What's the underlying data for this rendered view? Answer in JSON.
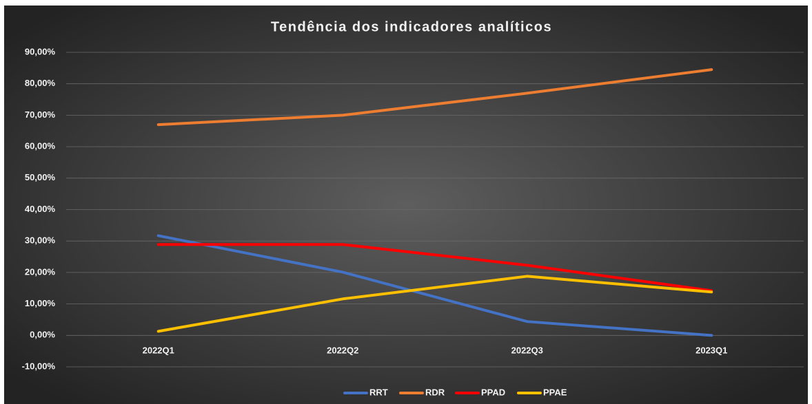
{
  "chart_data": {
    "type": "line",
    "title": "Tendência dos indicadores analíticos",
    "categories": [
      "2022Q1",
      "2022Q2",
      "2022Q3",
      "2023Q1"
    ],
    "series": [
      {
        "name": "RRT",
        "color": "#4472c4",
        "values": [
          31.7,
          20.1,
          4.4,
          0
        ]
      },
      {
        "name": "RDR",
        "color": "#ed7d31",
        "values": [
          67.0,
          70.0,
          77.0,
          84.5
        ]
      },
      {
        "name": "PPAD",
        "color": "#ff0000",
        "values": [
          28.9,
          28.9,
          22.3,
          14.2
        ]
      },
      {
        "name": "PPAE",
        "color": "#ffc000",
        "values": [
          1.3,
          11.6,
          18.8,
          13.8
        ]
      }
    ],
    "ylim": [
      -10,
      90
    ],
    "yticks": [
      {
        "value": -10,
        "label": "-10,00%"
      },
      {
        "value": 0,
        "label": "0,00%"
      },
      {
        "value": 10,
        "label": "10,00%"
      },
      {
        "value": 20,
        "label": "20,00%"
      },
      {
        "value": 30,
        "label": "30,00%"
      },
      {
        "value": 40,
        "label": "40,00%"
      },
      {
        "value": 50,
        "label": "50,00%"
      },
      {
        "value": 60,
        "label": "60,00%"
      },
      {
        "value": 70,
        "label": "70,00%"
      },
      {
        "value": 80,
        "label": "80,00%"
      },
      {
        "value": 90,
        "label": "90,00%"
      }
    ],
    "grid": true,
    "legend": "bottom"
  }
}
